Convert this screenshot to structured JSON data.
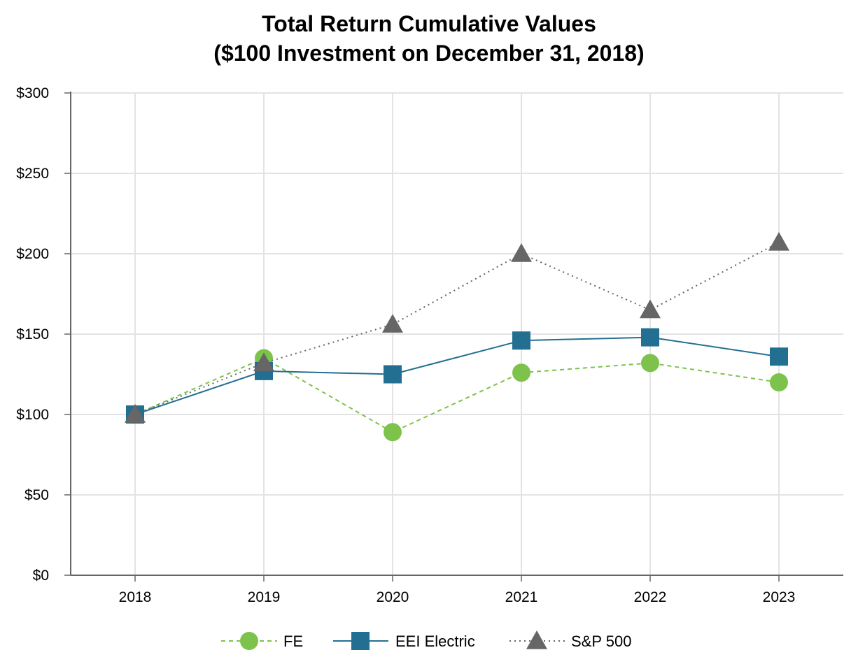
{
  "chart_data": {
    "type": "line",
    "title": [
      "Total Return Cumulative Values",
      "($100 Investment on December 31, 2018)"
    ],
    "categories": [
      "2018",
      "2019",
      "2020",
      "2021",
      "2022",
      "2023"
    ],
    "y_ticks": [
      0,
      50,
      100,
      150,
      200,
      250,
      300
    ],
    "y_tick_labels": [
      "$0",
      "$50",
      "$100",
      "$150",
      "$200",
      "$250",
      "$300"
    ],
    "ylim": [
      0,
      300
    ],
    "xlabel": "",
    "ylabel": "",
    "grid": true,
    "legend_position": "bottom-center",
    "series": [
      {
        "name": "FE",
        "values": [
          100,
          135,
          89,
          126,
          132,
          120
        ],
        "color": "#7dc24a",
        "marker": "circle",
        "line_style": "dashed"
      },
      {
        "name": "EEI Electric",
        "values": [
          100,
          127,
          125,
          146,
          148,
          136
        ],
        "color": "#236f91",
        "marker": "square",
        "line_style": "solid"
      },
      {
        "name": "S&P 500",
        "values": [
          100,
          132,
          156,
          200,
          165,
          207
        ],
        "color": "#666666",
        "marker": "triangle",
        "line_style": "dotted"
      }
    ]
  }
}
